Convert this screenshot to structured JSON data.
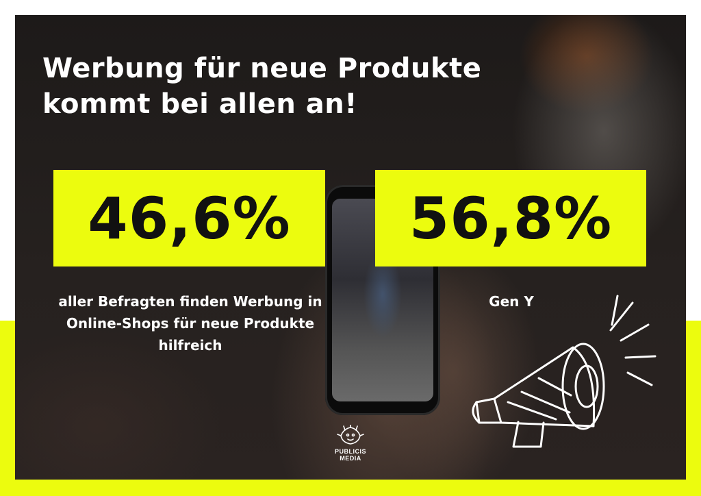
{
  "poster": {
    "title": "Werbung für neue Produkte kommt bei allen an!",
    "stats": [
      {
        "value": "46,6%",
        "caption": "aller Befragten finden Werbung in Online-Shops für neue Produkte hilfreich"
      },
      {
        "value": "56,8%",
        "caption": "Gen Y"
      }
    ],
    "logo": {
      "line1": "PUBLICIS",
      "line2": "MEDIA"
    },
    "illustration_icon": "megaphone-icon",
    "colors": {
      "accent": "#ecfc0e",
      "background": "#1f1b1a",
      "text": "#ffffff",
      "stat_text": "#111111"
    }
  }
}
